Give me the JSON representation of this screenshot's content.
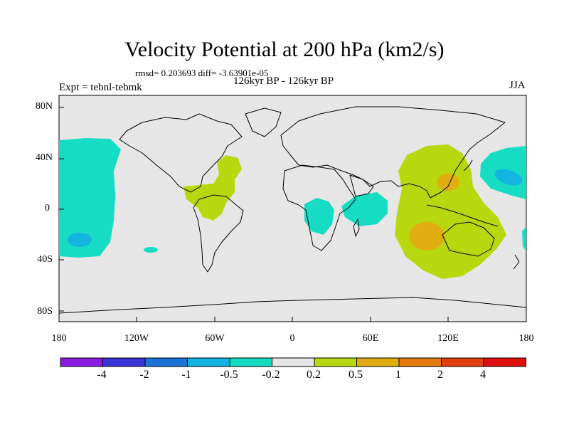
{
  "figure": {
    "title": "Velocity Potential at 200 hPa (km2/s)",
    "stats": "rmsd= 0.203693  diff= -3.63901e-05",
    "periods": "126kyr BP - 126kyr BP",
    "experiment": "Expt = tebnl-tebmk",
    "season": "JJA"
  },
  "axes": {
    "lat_labels": [
      "80N",
      "40N",
      "0",
      "40S",
      "80S"
    ],
    "lon_labels": [
      "180",
      "120W",
      "60W",
      "0",
      "60E",
      "120E",
      "180"
    ]
  },
  "colorbar": {
    "labels": [
      "-4",
      "-2",
      "-1",
      "-0.5",
      "-0.2",
      "0.2",
      "0.5",
      "1",
      "2",
      "4"
    ],
    "colors": [
      "#8a1ee0",
      "#3a33d6",
      "#1a73d9",
      "#14b4e0",
      "#16dcc4",
      "#e6e6e6",
      "#b7d80e",
      "#e0ae10",
      "#e57a10",
      "#e43d10",
      "#e01010"
    ]
  },
  "colors": {
    "map_background": "#e6e6e6",
    "positive_weak": "#b7d80e",
    "positive_mid": "#e0ae10",
    "negative_weak": "#16dcc4",
    "negative_mid": "#14b4e0"
  }
}
